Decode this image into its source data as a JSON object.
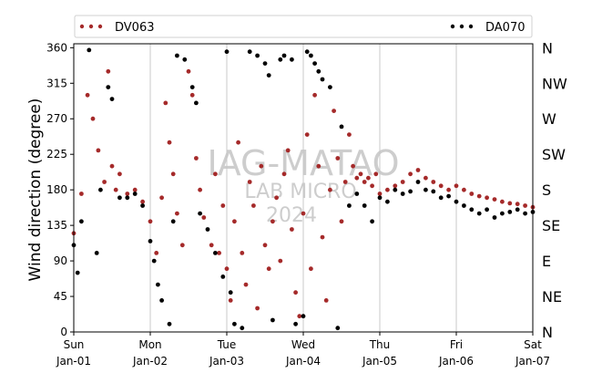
{
  "chart_data": {
    "type": "scatter",
    "xlabel": "",
    "ylabel": "Wind direction (degree)",
    "ylim": [
      0,
      365
    ],
    "xlim": [
      "2025-01-01",
      "2025-01-07"
    ],
    "yticks": [
      0,
      45,
      90,
      135,
      180,
      225,
      270,
      315,
      360
    ],
    "xticks": [
      {
        "day": "Sun",
        "date": "Jan-01"
      },
      {
        "day": "Mon",
        "date": "Jan-02"
      },
      {
        "day": "Tue",
        "date": "Jan-03"
      },
      {
        "day": "Wed",
        "date": "Jan-04"
      },
      {
        "day": "Thu",
        "date": "Jan-05"
      },
      {
        "day": "Fri",
        "date": "Jan-06"
      },
      {
        "day": "Sat",
        "date": "Jan-07"
      }
    ],
    "compass_labels": [
      "N",
      "NE",
      "E",
      "SE",
      "S",
      "SW",
      "W",
      "NW",
      "N"
    ],
    "grid": "vertical",
    "legend_position": "top",
    "watermark": [
      "IAG-MATAO",
      "LAB MICRO",
      "2024"
    ],
    "series": [
      {
        "name": "DV063",
        "color": "#a52a2a",
        "values": [
          [
            0.0,
            125
          ],
          [
            0.1,
            175
          ],
          [
            0.18,
            300
          ],
          [
            0.25,
            270
          ],
          [
            0.32,
            230
          ],
          [
            0.4,
            190
          ],
          [
            0.45,
            330
          ],
          [
            0.5,
            210
          ],
          [
            0.55,
            180
          ],
          [
            0.6,
            200
          ],
          [
            0.7,
            175
          ],
          [
            0.8,
            180
          ],
          [
            0.9,
            165
          ],
          [
            1.0,
            140
          ],
          [
            1.08,
            100
          ],
          [
            1.15,
            170
          ],
          [
            1.2,
            290
          ],
          [
            1.25,
            240
          ],
          [
            1.3,
            200
          ],
          [
            1.35,
            150
          ],
          [
            1.42,
            110
          ],
          [
            1.5,
            330
          ],
          [
            1.55,
            300
          ],
          [
            1.6,
            220
          ],
          [
            1.65,
            180
          ],
          [
            1.7,
            145
          ],
          [
            1.8,
            110
          ],
          [
            1.85,
            200
          ],
          [
            1.9,
            100
          ],
          [
            1.95,
            160
          ],
          [
            2.0,
            80
          ],
          [
            2.05,
            40
          ],
          [
            2.1,
            140
          ],
          [
            2.15,
            240
          ],
          [
            2.2,
            100
          ],
          [
            2.25,
            60
          ],
          [
            2.3,
            190
          ],
          [
            2.35,
            160
          ],
          [
            2.4,
            30
          ],
          [
            2.45,
            210
          ],
          [
            2.5,
            110
          ],
          [
            2.55,
            80
          ],
          [
            2.6,
            140
          ],
          [
            2.65,
            170
          ],
          [
            2.7,
            90
          ],
          [
            2.75,
            200
          ],
          [
            2.8,
            230
          ],
          [
            2.85,
            130
          ],
          [
            2.9,
            50
          ],
          [
            2.95,
            20
          ],
          [
            3.0,
            150
          ],
          [
            3.05,
            250
          ],
          [
            3.1,
            80
          ],
          [
            3.15,
            300
          ],
          [
            3.2,
            210
          ],
          [
            3.25,
            120
          ],
          [
            3.3,
            40
          ],
          [
            3.35,
            180
          ],
          [
            3.4,
            280
          ],
          [
            3.45,
            220
          ],
          [
            3.5,
            140
          ],
          [
            3.55,
            190
          ],
          [
            3.6,
            250
          ],
          [
            3.65,
            210
          ],
          [
            3.7,
            195
          ],
          [
            3.75,
            200
          ],
          [
            3.8,
            190
          ],
          [
            3.85,
            195
          ],
          [
            3.9,
            185
          ],
          [
            3.95,
            200
          ],
          [
            4.0,
            175
          ],
          [
            4.1,
            180
          ],
          [
            4.2,
            185
          ],
          [
            4.3,
            190
          ],
          [
            4.4,
            200
          ],
          [
            4.5,
            205
          ],
          [
            4.6,
            195
          ],
          [
            4.7,
            190
          ],
          [
            4.8,
            185
          ],
          [
            4.9,
            180
          ],
          [
            5.0,
            185
          ],
          [
            5.1,
            180
          ],
          [
            5.2,
            175
          ],
          [
            5.3,
            172
          ],
          [
            5.4,
            170
          ],
          [
            5.5,
            168
          ],
          [
            5.6,
            165
          ],
          [
            5.7,
            163
          ],
          [
            5.8,
            162
          ],
          [
            5.9,
            160
          ],
          [
            6.0,
            158
          ]
        ]
      },
      {
        "name": "DA070",
        "color": "#000000",
        "values": [
          [
            0.0,
            110
          ],
          [
            0.05,
            75
          ],
          [
            0.1,
            140
          ],
          [
            0.2,
            357
          ],
          [
            0.3,
            100
          ],
          [
            0.35,
            180
          ],
          [
            0.45,
            310
          ],
          [
            0.5,
            295
          ],
          [
            0.6,
            170
          ],
          [
            0.7,
            170
          ],
          [
            0.8,
            175
          ],
          [
            0.9,
            160
          ],
          [
            1.0,
            115
          ],
          [
            1.05,
            90
          ],
          [
            1.1,
            60
          ],
          [
            1.15,
            40
          ],
          [
            1.25,
            10
          ],
          [
            1.3,
            140
          ],
          [
            1.35,
            350
          ],
          [
            1.45,
            345
          ],
          [
            1.55,
            310
          ],
          [
            1.6,
            290
          ],
          [
            1.65,
            150
          ],
          [
            1.75,
            130
          ],
          [
            1.85,
            100
          ],
          [
            1.95,
            70
          ],
          [
            2.0,
            355
          ],
          [
            2.05,
            50
          ],
          [
            2.1,
            10
          ],
          [
            2.2,
            5
          ],
          [
            2.3,
            355
          ],
          [
            2.4,
            350
          ],
          [
            2.5,
            340
          ],
          [
            2.55,
            325
          ],
          [
            2.6,
            15
          ],
          [
            2.7,
            345
          ],
          [
            2.75,
            350
          ],
          [
            2.85,
            345
          ],
          [
            2.9,
            10
          ],
          [
            3.0,
            20
          ],
          [
            3.05,
            355
          ],
          [
            3.1,
            350
          ],
          [
            3.15,
            340
          ],
          [
            3.2,
            330
          ],
          [
            3.25,
            320
          ],
          [
            3.35,
            310
          ],
          [
            3.45,
            5
          ],
          [
            3.5,
            260
          ],
          [
            3.6,
            160
          ],
          [
            3.7,
            175
          ],
          [
            3.8,
            160
          ],
          [
            3.9,
            140
          ],
          [
            4.0,
            170
          ],
          [
            4.1,
            165
          ],
          [
            4.2,
            180
          ],
          [
            4.3,
            175
          ],
          [
            4.4,
            178
          ],
          [
            4.5,
            190
          ],
          [
            4.6,
            180
          ],
          [
            4.7,
            178
          ],
          [
            4.8,
            170
          ],
          [
            4.9,
            172
          ],
          [
            5.0,
            165
          ],
          [
            5.1,
            160
          ],
          [
            5.2,
            155
          ],
          [
            5.3,
            150
          ],
          [
            5.4,
            155
          ],
          [
            5.5,
            145
          ],
          [
            5.6,
            150
          ],
          [
            5.7,
            152
          ],
          [
            5.8,
            155
          ],
          [
            5.9,
            150
          ],
          [
            6.0,
            152
          ]
        ]
      }
    ]
  }
}
